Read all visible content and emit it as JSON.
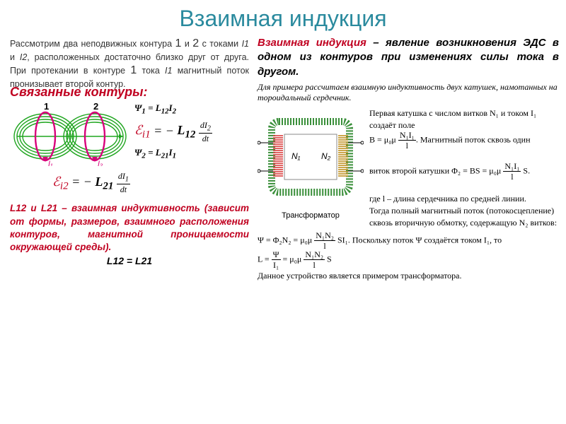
{
  "title": "Взаимная индукция",
  "colors": {
    "title": "#2a8a9e",
    "subtitle": "#c00020",
    "defn_accent": "#c00020",
    "note_accent": "#c00020",
    "eq_accent": "#c00020",
    "body": "#333333"
  },
  "intro": {
    "text_html": "Рассмотрим два неподвижных контура <span class='big'>1</span> и <span class='big'>2</span> с токами <span class='it'>I1</span> и <span class='it'>I2</span>, расположенных достаточно близко друг от друга. При протекании в контуре <span class='big'>1</span> тока <span class='it'>I1</span> магнитный поток пронизывает второй контур."
  },
  "subtitle": "Связанные контуры:",
  "defn": {
    "lead": "Взаимная индукция",
    "rest": " – явление возникновения ЭДС в одном из контуров при изменениях силы тока в другом."
  },
  "equations": {
    "psi1": "Ψ₁ = L₁₂I₂",
    "emf1": "ℰᵢ₁ = − L₁₂ (dI₂/dt)",
    "psi2": "Ψ₂ = L₂₁I₁",
    "emf2": "ℰᵢ₂ = − L₂₁ (dI₁/dt)"
  },
  "note": {
    "lead": "L12 и L21 – взаимная индуктивность",
    "rest": " (зависит от формы, размеров, взаимного расположения контуров, магнитной проницаемости окружающей среды).",
    "last": "L12 = L21"
  },
  "example": {
    "intro": "Для примера рассчитаем взаимную индуктивность двух катушек, намотанных на тороидальный сердечник.",
    "p1_a": "Первая катушка с числом витков ",
    "p1_b": " и током ",
    "p1_c": " создаёт поле",
    "B_eq": "B = μ₀μ (N₁I₁ / l)",
    "p2": ". Магнитный поток сквозь один",
    "p3_a": "виток второй катушки ",
    "phi2_eq": "Φ₂ = BS = μ₀μ (N₁I₁ / l) S",
    "p4_a": "где ",
    "p4_b": " – длина сердечника по средней линии.",
    "p5": "Тогда полный магнитный поток (потокосцепление) сквозь вторичную обмотку, содержащую ",
    "p5_b": " витков:",
    "psi_eq": "Ψ = Φ₂N₂ = μ₀μ (N₁N₂ / l) SI₁",
    "p6": ". Поскольку поток Ψ создаётся током I₁, то",
    "L_eq": "L = Ψ / I₁ = μ₀μ (N₁N₂ / l) S",
    "final": "Данное устройство является примером трансформатора."
  },
  "transformer_label": "Трансформатор",
  "coils_diagram": {
    "label1": "1",
    "label2": "2",
    "arrowI1": "I₁",
    "arrowI2": "I₂",
    "coil_color": "#d8007a",
    "field_color": "#1ea51e"
  },
  "transformer_diagram": {
    "core_color": "#3a8f3a",
    "winding1": "#d83c3c",
    "winding2": "#c09020",
    "N1": "N₁",
    "N2": "N₂"
  }
}
